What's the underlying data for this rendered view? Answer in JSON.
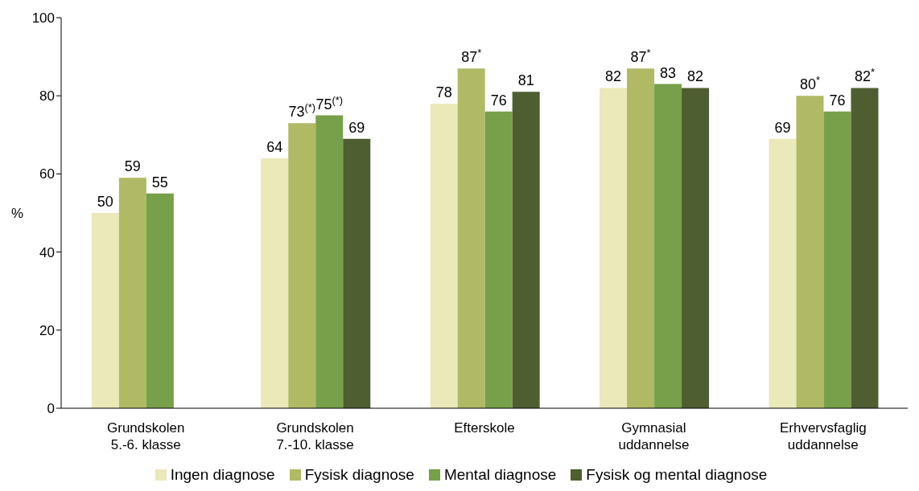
{
  "chart_data": {
    "type": "bar",
    "ylabel": "%",
    "categories": [
      "Grundskolen\n5.-6. klasse",
      "Grundskolen\n7.-10. klasse",
      "Efterskole",
      "Gymnasial\nuddannelse",
      "Erhvervsfaglig\nuddannelse"
    ],
    "series": [
      {
        "name": "Ingen diagnose",
        "color": "#ebe8b9",
        "values": [
          50,
          64,
          78,
          82,
          69
        ],
        "value_labels": [
          "50",
          "64",
          "78",
          "82",
          "69"
        ]
      },
      {
        "name": "Fysisk diagnose",
        "color": "#b0b964",
        "values": [
          59,
          73,
          87,
          87,
          80
        ],
        "value_labels": [
          "59",
          "73$^{(*)}$",
          "87$^{*}$",
          "87$^{*}$",
          "80$^{*}$"
        ]
      },
      {
        "name": "Mental diagnose",
        "color": "#77a04a",
        "values": [
          55,
          75,
          76,
          83,
          76
        ],
        "value_labels": [
          "55",
          "75$^{(*)}$",
          "76",
          "83",
          "76"
        ]
      },
      {
        "name": "Fysisk og mental diagnose",
        "color": "#4e5e30",
        "values": [
          null,
          69,
          81,
          82,
          82
        ],
        "value_labels": [
          null,
          "69",
          "81",
          "82",
          "82$^{*}$"
        ]
      }
    ],
    "ylim": [
      0,
      100
    ],
    "yticks": [
      0,
      20,
      40,
      60,
      80,
      100
    ],
    "grid": false,
    "legend": "bottom"
  }
}
